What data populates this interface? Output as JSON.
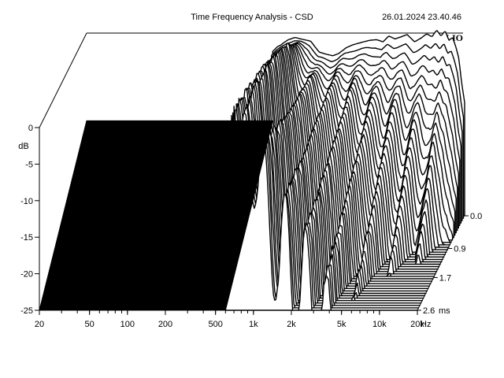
{
  "header": {
    "title": "Time Frequency Analysis - CSD",
    "timestamp": "26.01.2024 23.40.46",
    "brand": "CLIO"
  },
  "chart_data": {
    "type": "waterfall",
    "ylabel": "dB",
    "y_ticks": [
      0,
      -5,
      -10,
      -15,
      -20,
      -25
    ],
    "ylim": [
      -25,
      0
    ],
    "x_ticks": [
      {
        "v": 20,
        "label": "20"
      },
      {
        "v": 50,
        "label": "50"
      },
      {
        "v": 100,
        "label": "100"
      },
      {
        "v": 200,
        "label": "200"
      },
      {
        "v": 500,
        "label": "500"
      },
      {
        "v": 1000,
        "label": "1k"
      },
      {
        "v": 2000,
        "label": "2k"
      },
      {
        "v": 5000,
        "label": "5k"
      },
      {
        "v": 10000,
        "label": "10k"
      },
      {
        "v": 20000,
        "label": "20k"
      }
    ],
    "x_unit": "Hz",
    "xlim": [
      20,
      20000
    ],
    "x_scale": "log",
    "z_ticks": [
      {
        "v": 0.0,
        "label": "0.0"
      },
      {
        "v": 0.9,
        "label": "0.9"
      },
      {
        "v": 1.7,
        "label": "1.7"
      },
      {
        "v": 2.6,
        "label": "2.6"
      }
    ],
    "z_unit": "ms",
    "zlim": [
      0,
      2.6
    ],
    "window_start_hz": 600,
    "floor_db": -12,
    "slice_count": 40,
    "spectrum_0ms": {
      "freq": [
        600,
        650,
        700,
        750,
        800,
        900,
        1000,
        1200,
        1400,
        1600,
        1800,
        2000,
        2300,
        2600,
        3000,
        3500,
        4000,
        4500,
        5000,
        5600,
        6300,
        7000,
        8000,
        9000,
        10000,
        11000,
        12000,
        13000,
        14000,
        15000,
        16000,
        17000,
        18000,
        19000,
        20000
      ],
      "db": [
        -2.5,
        -1.9,
        -1.6,
        -1.2,
        -0.9,
        -0.6,
        -0.8,
        -1.1,
        -2.6,
        -2.9,
        -3.1,
        -2.8,
        -2.0,
        -1.6,
        -1.3,
        -1.0,
        -0.9,
        -1.2,
        -0.4,
        -0.8,
        -0.5,
        -0.2,
        -1.2,
        -0.7,
        -0.1,
        -0.5,
        0.4,
        -0.4,
        0.3,
        -1.0,
        -0.6,
        -1.8,
        -3.5,
        -7.0,
        -9.5
      ]
    }
  }
}
